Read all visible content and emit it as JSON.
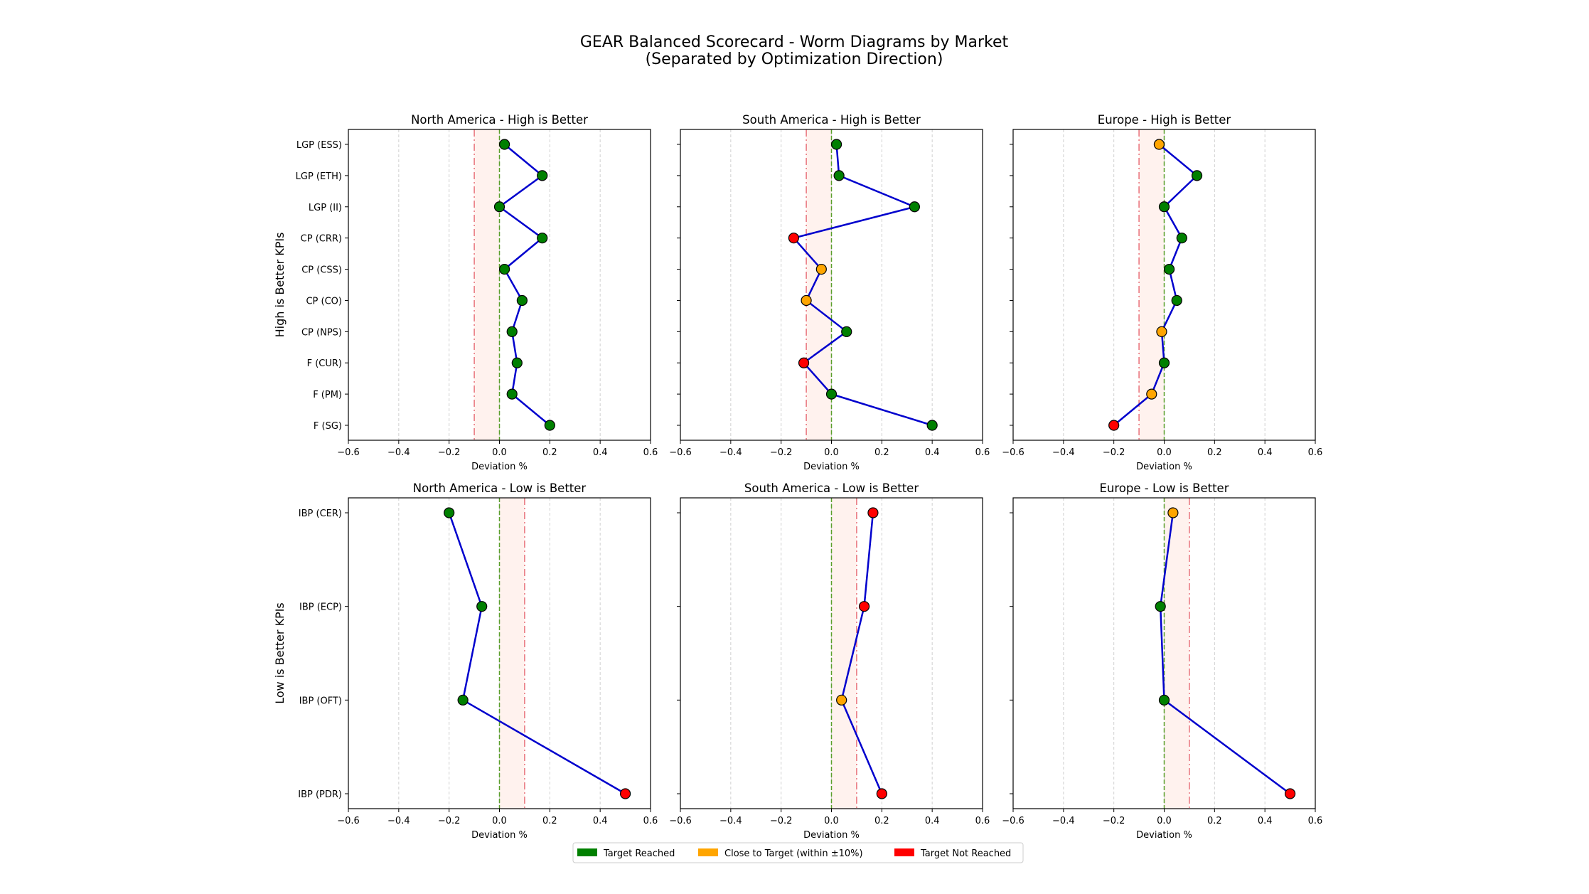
{
  "figure": {
    "title_line1": "GEAR Balanced Scorecard - Worm Diagrams by Market",
    "title_line2": "(Separated by Optimization Direction)"
  },
  "colors": {
    "line": "#0000cd",
    "target_reached": "#008000",
    "close_to_target": "#ffa500",
    "target_not_reached": "#ff0000",
    "zero_line": "#5aa02c",
    "threshold_line": "#e8707a",
    "band_fill": "#fff2ee",
    "grid": "#d0d0d0"
  },
  "legend": {
    "placement": "bottom-center",
    "items": [
      {
        "label": "Target Reached",
        "color": "#008000"
      },
      {
        "label": "Close to Target (within ±10%)",
        "color": "#ffa500"
      },
      {
        "label": "Target Not Reached",
        "color": "#ff0000"
      }
    ]
  },
  "chart_data": [
    {
      "type": "line",
      "title": "North America - High is Better",
      "xlabel": "Deviation %",
      "ylabel": "High is Better KPIs",
      "xlim": [
        -0.6,
        0.6
      ],
      "xticks": [
        "−0.6",
        "−0.4",
        "−0.2",
        "0.0",
        "0.2",
        "0.4",
        "0.6"
      ],
      "threshold": -0.1,
      "grid": "vertical",
      "categories": [
        "LGP (ESS)",
        "LGP (ETH)",
        "LGP (II)",
        "CP (CRR)",
        "CP (CSS)",
        "CP (CO)",
        "CP (NPS)",
        "F (CUR)",
        "F (PM)",
        "F (SG)"
      ],
      "values": [
        0.02,
        0.17,
        0.0,
        0.17,
        0.02,
        0.09,
        0.05,
        0.07,
        0.05,
        0.2
      ],
      "status": [
        "reached",
        "reached",
        "reached",
        "reached",
        "reached",
        "reached",
        "reached",
        "reached",
        "reached",
        "reached"
      ]
    },
    {
      "type": "line",
      "title": "South America - High is Better",
      "xlabel": "Deviation %",
      "ylabel": "",
      "xlim": [
        -0.6,
        0.6
      ],
      "xticks": [
        "−0.6",
        "−0.4",
        "−0.2",
        "0.0",
        "0.2",
        "0.4",
        "0.6"
      ],
      "threshold": -0.1,
      "grid": "vertical",
      "categories": [
        "LGP (ESS)",
        "LGP (ETH)",
        "LGP (II)",
        "CP (CRR)",
        "CP (CSS)",
        "CP (CO)",
        "CP (NPS)",
        "F (CUR)",
        "F (PM)",
        "F (SG)"
      ],
      "values": [
        0.02,
        0.03,
        0.33,
        -0.15,
        -0.04,
        -0.1,
        0.06,
        -0.11,
        0.0,
        0.4
      ],
      "status": [
        "reached",
        "reached",
        "reached",
        "not_reached",
        "close",
        "close",
        "reached",
        "not_reached",
        "reached",
        "reached"
      ]
    },
    {
      "type": "line",
      "title": "Europe - High is Better",
      "xlabel": "Deviation %",
      "ylabel": "",
      "xlim": [
        -0.6,
        0.6
      ],
      "xticks": [
        "−0.6",
        "−0.4",
        "−0.2",
        "0.0",
        "0.2",
        "0.4",
        "0.6"
      ],
      "threshold": -0.1,
      "grid": "vertical",
      "categories": [
        "LGP (ESS)",
        "LGP (ETH)",
        "LGP (II)",
        "CP (CRR)",
        "CP (CSS)",
        "CP (CO)",
        "CP (NPS)",
        "F (CUR)",
        "F (PM)",
        "F (SG)"
      ],
      "values": [
        -0.02,
        0.13,
        0.0,
        0.07,
        0.02,
        0.05,
        -0.01,
        0.0,
        -0.05,
        -0.2
      ],
      "status": [
        "close",
        "reached",
        "reached",
        "reached",
        "reached",
        "reached",
        "close",
        "reached",
        "close",
        "not_reached"
      ]
    },
    {
      "type": "line",
      "title": "North America - Low is Better",
      "xlabel": "Deviation %",
      "ylabel": "Low is Better KPIs",
      "xlim": [
        -0.6,
        0.6
      ],
      "xticks": [
        "−0.6",
        "−0.4",
        "−0.2",
        "0.0",
        "0.2",
        "0.4",
        "0.6"
      ],
      "threshold": 0.1,
      "grid": "vertical",
      "categories": [
        "IBP (CER)",
        "IBP (ECP)",
        "IBP (OFT)",
        "IBP (PDR)"
      ],
      "values": [
        -0.2,
        -0.07,
        -0.145,
        0.5
      ],
      "status": [
        "reached",
        "reached",
        "reached",
        "not_reached"
      ]
    },
    {
      "type": "line",
      "title": "South America - Low is Better",
      "xlabel": "Deviation %",
      "ylabel": "",
      "xlim": [
        -0.6,
        0.6
      ],
      "xticks": [
        "−0.6",
        "−0.4",
        "−0.2",
        "0.0",
        "0.2",
        "0.4",
        "0.6"
      ],
      "threshold": 0.1,
      "grid": "vertical",
      "categories": [
        "IBP (CER)",
        "IBP (ECP)",
        "IBP (OFT)",
        "IBP (PDR)"
      ],
      "values": [
        0.165,
        0.13,
        0.04,
        0.2
      ],
      "status": [
        "not_reached",
        "not_reached",
        "close",
        "not_reached"
      ]
    },
    {
      "type": "line",
      "title": "Europe - Low is Better",
      "xlabel": "Deviation %",
      "ylabel": "",
      "xlim": [
        -0.6,
        0.6
      ],
      "xticks": [
        "−0.6",
        "−0.4",
        "−0.2",
        "0.0",
        "0.2",
        "0.4",
        "0.6"
      ],
      "threshold": 0.1,
      "grid": "vertical",
      "categories": [
        "IBP (CER)",
        "IBP (ECP)",
        "IBP (OFT)",
        "IBP (PDR)"
      ],
      "values": [
        0.035,
        -0.015,
        0.0,
        0.5
      ],
      "status": [
        "close",
        "reached",
        "reached",
        "not_reached"
      ]
    }
  ]
}
